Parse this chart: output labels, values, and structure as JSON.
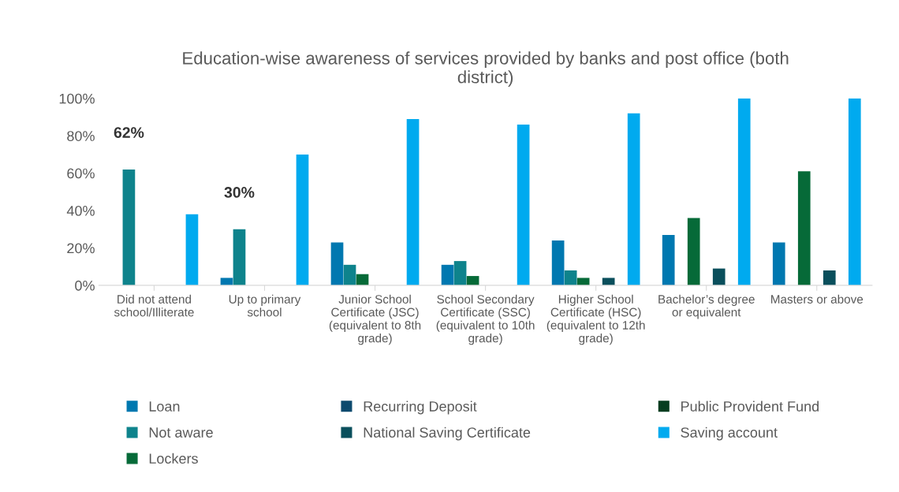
{
  "chart_data": {
    "type": "bar",
    "title": "Education-wise awareness of services provided by banks and post office (both\ndistrict)",
    "categories": [
      "Did not attend\nschool/Illiterate",
      "Up to primary\nschool",
      "Junior School\nCertificate (JSC)\n(equivalent to 8th\ngrade)",
      "School Secondary\nCertificate (SSC)\n(equivalent to 10th\ngrade)",
      "Higher School\nCertificate (HSC)\n(equivalent to 12th\ngrade)",
      "Bachelor’s degree\nor equivalent",
      "Masters or above"
    ],
    "series": [
      {
        "name": "Loan",
        "color": "#0078b0",
        "values": [
          0,
          4,
          23,
          11,
          24,
          27,
          23
        ]
      },
      {
        "name": "Not aware",
        "color": "#0e838c",
        "values": [
          62,
          30,
          11,
          13,
          8,
          null,
          null
        ],
        "value_labels": [
          "62%",
          "30%",
          null,
          null,
          null,
          null,
          null
        ]
      },
      {
        "name": "Lockers",
        "color": "#066a38",
        "values": [
          null,
          null,
          6,
          5,
          4,
          36,
          61
        ]
      },
      {
        "name": "Recurring Deposit",
        "color": "#0d4a6e",
        "values": [
          null,
          null,
          null,
          null,
          null,
          null,
          null
        ]
      },
      {
        "name": "National Saving Certificate",
        "color": "#0a4f5c",
        "values": [
          null,
          null,
          null,
          null,
          4,
          9,
          8
        ]
      },
      {
        "name": "Public Provident Fund",
        "color": "#053d20",
        "values": [
          null,
          null,
          null,
          null,
          null,
          null,
          null
        ]
      },
      {
        "name": "Saving account",
        "color": "#00aaef",
        "values": [
          38,
          70,
          89,
          86,
          92,
          100,
          100
        ]
      }
    ],
    "ylim": [
      0,
      100
    ],
    "yticks": [
      {
        "value": 0,
        "label": "0%"
      },
      {
        "value": 20,
        "label": "20%"
      },
      {
        "value": 40,
        "label": "40%"
      },
      {
        "value": 60,
        "label": "60%"
      },
      {
        "value": 80,
        "label": "80%"
      },
      {
        "value": 100,
        "label": "100%"
      }
    ],
    "grid": false,
    "legend": "bottom"
  }
}
